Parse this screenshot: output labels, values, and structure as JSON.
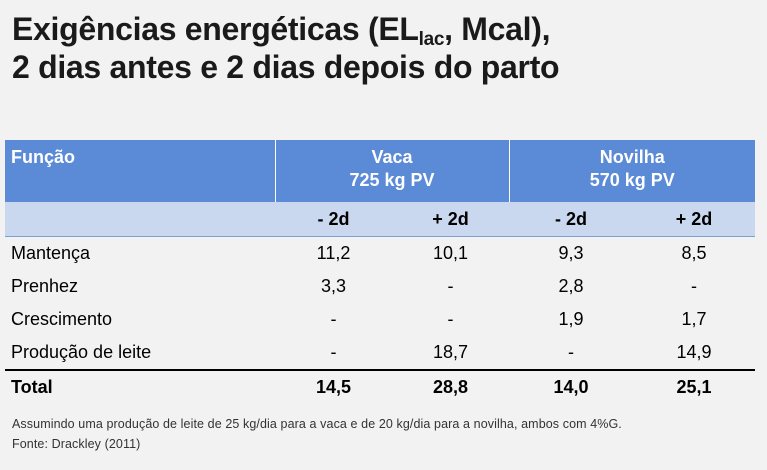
{
  "title": {
    "part1": "Exigências energéticas (EL",
    "sub": "lac",
    "part2": ", Mcal),",
    "line2": "2 dias antes e 2 dias depois do parto"
  },
  "table": {
    "header": {
      "funcao": "Função",
      "vaca_l1": "Vaca",
      "vaca_l2": "725 kg PV",
      "novilha_l1": "Novilha",
      "novilha_l2": "570 kg PV"
    },
    "subheader": [
      "- 2d",
      "+ 2d",
      "- 2d",
      "+ 2d"
    ],
    "rows": [
      {
        "label": "Mantença",
        "values": [
          "11,2",
          "10,1",
          "9,3",
          "8,5"
        ]
      },
      {
        "label": "Prenhez",
        "values": [
          "3,3",
          "-",
          "2,8",
          "-"
        ]
      },
      {
        "label": "Crescimento",
        "values": [
          "-",
          "-",
          "1,9",
          "1,7"
        ]
      },
      {
        "label": "Produção de leite",
        "values": [
          "-",
          "18,7",
          "-",
          "14,9"
        ]
      }
    ],
    "total": {
      "label": "Total",
      "values": [
        "14,5",
        "28,8",
        "14,0",
        "25,1"
      ]
    }
  },
  "notes": {
    "assumption": "Assumindo uma produção de leite de 25 kg/dia para a vaca e de 20 kg/dia para a novilha, ambos com 4%G.",
    "source": "Fonte: Drackley (2011)"
  }
}
